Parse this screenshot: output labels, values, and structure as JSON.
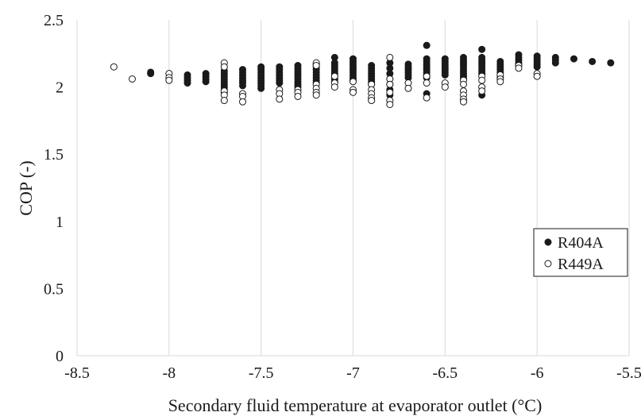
{
  "chart_data": {
    "type": "scatter",
    "title": "",
    "xlabel": "Secondary fluid temperature at evaporator outlet (°C)",
    "ylabel": "COP (-)",
    "xlim": [
      -8.5,
      -5.5
    ],
    "ylim": [
      0,
      2.5
    ],
    "x_ticks": [
      "-8.5",
      "-8",
      "-7.5",
      "-7",
      "-6.5",
      "-6",
      "-5.5"
    ],
    "y_ticks": [
      "0",
      "0.5",
      "1",
      "1.5",
      "2",
      "2.5"
    ],
    "grid": "vertical",
    "legend_position": "right",
    "series": [
      {
        "name": "R404A",
        "marker": "filled-circle",
        "color": "#1a1a1a",
        "points": [
          [
            -8.1,
            2.11
          ],
          [
            -8.1,
            2.1
          ],
          [
            -7.9,
            2.09
          ],
          [
            -7.9,
            2.07
          ],
          [
            -7.9,
            2.05
          ],
          [
            -7.9,
            2.03
          ],
          [
            -7.8,
            2.1
          ],
          [
            -7.8,
            2.08
          ],
          [
            -7.8,
            2.06
          ],
          [
            -7.8,
            2.04
          ],
          [
            -7.7,
            2.12
          ],
          [
            -7.7,
            2.1
          ],
          [
            -7.7,
            2.08
          ],
          [
            -7.7,
            2.06
          ],
          [
            -7.7,
            2.04
          ],
          [
            -7.7,
            2.02
          ],
          [
            -7.7,
            2.0
          ],
          [
            -7.7,
            1.98
          ],
          [
            -7.7,
            1.96
          ],
          [
            -7.6,
            2.13
          ],
          [
            -7.6,
            2.11
          ],
          [
            -7.6,
            2.09
          ],
          [
            -7.6,
            2.07
          ],
          [
            -7.6,
            2.05
          ],
          [
            -7.6,
            2.03
          ],
          [
            -7.6,
            2.01
          ],
          [
            -7.5,
            2.15
          ],
          [
            -7.5,
            2.13
          ],
          [
            -7.5,
            2.11
          ],
          [
            -7.5,
            2.09
          ],
          [
            -7.5,
            2.07
          ],
          [
            -7.5,
            2.05
          ],
          [
            -7.5,
            2.03
          ],
          [
            -7.5,
            2.01
          ],
          [
            -7.5,
            1.99
          ],
          [
            -7.4,
            2.15
          ],
          [
            -7.4,
            2.13
          ],
          [
            -7.4,
            2.11
          ],
          [
            -7.4,
            2.09
          ],
          [
            -7.4,
            2.07
          ],
          [
            -7.4,
            2.05
          ],
          [
            -7.4,
            2.03
          ],
          [
            -7.3,
            2.16
          ],
          [
            -7.3,
            2.14
          ],
          [
            -7.3,
            2.12
          ],
          [
            -7.3,
            2.1
          ],
          [
            -7.3,
            2.08
          ],
          [
            -7.3,
            2.06
          ],
          [
            -7.3,
            2.04
          ],
          [
            -7.3,
            2.02
          ],
          [
            -7.3,
            2.0
          ],
          [
            -7.2,
            2.17
          ],
          [
            -7.2,
            2.15
          ],
          [
            -7.2,
            2.13
          ],
          [
            -7.2,
            2.11
          ],
          [
            -7.2,
            2.09
          ],
          [
            -7.2,
            2.07
          ],
          [
            -7.2,
            2.05
          ],
          [
            -7.2,
            2.03
          ],
          [
            -7.1,
            2.22
          ],
          [
            -7.1,
            2.18
          ],
          [
            -7.1,
            2.16
          ],
          [
            -7.1,
            2.14
          ],
          [
            -7.1,
            2.12
          ],
          [
            -7.1,
            2.1
          ],
          [
            -7.1,
            2.08
          ],
          [
            -7.1,
            2.06
          ],
          [
            -7.1,
            2.04
          ],
          [
            -7.0,
            2.21
          ],
          [
            -7.0,
            2.19
          ],
          [
            -7.0,
            2.17
          ],
          [
            -7.0,
            2.15
          ],
          [
            -7.0,
            2.13
          ],
          [
            -7.0,
            2.11
          ],
          [
            -7.0,
            2.09
          ],
          [
            -7.0,
            2.07
          ],
          [
            -7.0,
            2.05
          ],
          [
            -6.9,
            2.16
          ],
          [
            -6.9,
            2.14
          ],
          [
            -6.9,
            2.12
          ],
          [
            -6.9,
            2.1
          ],
          [
            -6.9,
            2.08
          ],
          [
            -6.9,
            2.06
          ],
          [
            -6.9,
            2.04
          ],
          [
            -6.9,
            2.02
          ],
          [
            -6.8,
            2.18
          ],
          [
            -6.8,
            2.14
          ],
          [
            -6.8,
            2.1
          ],
          [
            -6.8,
            2.06
          ],
          [
            -6.8,
            2.02
          ],
          [
            -6.8,
            1.98
          ],
          [
            -6.8,
            1.94
          ],
          [
            -6.7,
            2.17
          ],
          [
            -6.7,
            2.15
          ],
          [
            -6.7,
            2.13
          ],
          [
            -6.7,
            2.11
          ],
          [
            -6.7,
            2.09
          ],
          [
            -6.7,
            2.07
          ],
          [
            -6.6,
            2.31
          ],
          [
            -6.6,
            2.21
          ],
          [
            -6.6,
            2.19
          ],
          [
            -6.6,
            2.17
          ],
          [
            -6.6,
            2.15
          ],
          [
            -6.6,
            2.13
          ],
          [
            -6.6,
            2.11
          ],
          [
            -6.6,
            2.09
          ],
          [
            -6.6,
            2.07
          ],
          [
            -6.6,
            1.95
          ],
          [
            -6.5,
            2.21
          ],
          [
            -6.5,
            2.19
          ],
          [
            -6.5,
            2.17
          ],
          [
            -6.5,
            2.15
          ],
          [
            -6.5,
            2.13
          ],
          [
            -6.5,
            2.11
          ],
          [
            -6.5,
            2.09
          ],
          [
            -6.4,
            2.22
          ],
          [
            -6.4,
            2.2
          ],
          [
            -6.4,
            2.18
          ],
          [
            -6.4,
            2.16
          ],
          [
            -6.4,
            2.14
          ],
          [
            -6.4,
            2.12
          ],
          [
            -6.4,
            2.1
          ],
          [
            -6.4,
            2.08
          ],
          [
            -6.4,
            2.06
          ],
          [
            -6.3,
            2.28
          ],
          [
            -6.3,
            2.22
          ],
          [
            -6.3,
            2.2
          ],
          [
            -6.3,
            2.18
          ],
          [
            -6.3,
            2.16
          ],
          [
            -6.3,
            2.14
          ],
          [
            -6.3,
            2.12
          ],
          [
            -6.3,
            2.1
          ],
          [
            -6.3,
            1.94
          ],
          [
            -6.2,
            2.19
          ],
          [
            -6.2,
            2.17
          ],
          [
            -6.2,
            2.15
          ],
          [
            -6.2,
            2.13
          ],
          [
            -6.2,
            2.11
          ],
          [
            -6.2,
            2.09
          ],
          [
            -6.2,
            2.07
          ],
          [
            -6.1,
            2.24
          ],
          [
            -6.1,
            2.22
          ],
          [
            -6.1,
            2.2
          ],
          [
            -6.1,
            2.18
          ],
          [
            -6.1,
            2.16
          ],
          [
            -6.0,
            2.23
          ],
          [
            -6.0,
            2.21
          ],
          [
            -6.0,
            2.19
          ],
          [
            -6.0,
            2.17
          ],
          [
            -6.0,
            2.15
          ],
          [
            -5.9,
            2.22
          ],
          [
            -5.9,
            2.2
          ],
          [
            -5.9,
            2.18
          ],
          [
            -5.8,
            2.21
          ],
          [
            -5.7,
            2.19
          ],
          [
            -5.6,
            2.18
          ]
        ]
      },
      {
        "name": "R449A",
        "marker": "open-circle",
        "color": "#1a1a1a",
        "points": [
          [
            -8.3,
            2.15
          ],
          [
            -8.2,
            2.06
          ],
          [
            -8.0,
            2.1
          ],
          [
            -8.0,
            2.07
          ],
          [
            -8.0,
            2.05
          ],
          [
            -7.7,
            2.18
          ],
          [
            -7.7,
            2.15
          ],
          [
            -7.7,
            1.97
          ],
          [
            -7.7,
            1.94
          ],
          [
            -7.7,
            1.9
          ],
          [
            -7.6,
            1.95
          ],
          [
            -7.6,
            1.93
          ],
          [
            -7.6,
            1.89
          ],
          [
            -7.4,
            1.98
          ],
          [
            -7.4,
            1.95
          ],
          [
            -7.4,
            1.91
          ],
          [
            -7.3,
            1.98
          ],
          [
            -7.3,
            1.96
          ],
          [
            -7.3,
            1.93
          ],
          [
            -7.2,
            2.18
          ],
          [
            -7.2,
            2.16
          ],
          [
            -7.2,
            2.02
          ],
          [
            -7.2,
            1.99
          ],
          [
            -7.2,
            1.96
          ],
          [
            -7.2,
            1.94
          ],
          [
            -7.1,
            2.08
          ],
          [
            -7.1,
            2.03
          ],
          [
            -7.1,
            2.0
          ],
          [
            -7.0,
            2.04
          ],
          [
            -7.0,
            1.98
          ],
          [
            -7.0,
            1.96
          ],
          [
            -6.9,
            2.02
          ],
          [
            -6.9,
            1.98
          ],
          [
            -6.9,
            1.95
          ],
          [
            -6.9,
            1.92
          ],
          [
            -6.9,
            1.9
          ],
          [
            -6.8,
            2.22
          ],
          [
            -6.8,
            2.06
          ],
          [
            -6.8,
            2.02
          ],
          [
            -6.8,
            1.96
          ],
          [
            -6.8,
            1.9
          ],
          [
            -6.8,
            1.87
          ],
          [
            -6.7,
            2.03
          ],
          [
            -6.7,
            1.99
          ],
          [
            -6.6,
            2.08
          ],
          [
            -6.6,
            2.03
          ],
          [
            -6.6,
            1.92
          ],
          [
            -6.5,
            2.03
          ],
          [
            -6.5,
            2.0
          ],
          [
            -6.4,
            2.05
          ],
          [
            -6.4,
            2.02
          ],
          [
            -6.4,
            1.97
          ],
          [
            -6.4,
            1.94
          ],
          [
            -6.4,
            1.91
          ],
          [
            -6.4,
            1.89
          ],
          [
            -6.3,
            2.08
          ],
          [
            -6.3,
            2.05
          ],
          [
            -6.3,
            2.0
          ],
          [
            -6.3,
            1.97
          ],
          [
            -6.2,
            2.09
          ],
          [
            -6.2,
            2.06
          ],
          [
            -6.2,
            2.04
          ],
          [
            -6.1,
            2.16
          ],
          [
            -6.1,
            2.14
          ],
          [
            -6.0,
            2.1
          ],
          [
            -6.0,
            2.08
          ]
        ]
      }
    ]
  }
}
